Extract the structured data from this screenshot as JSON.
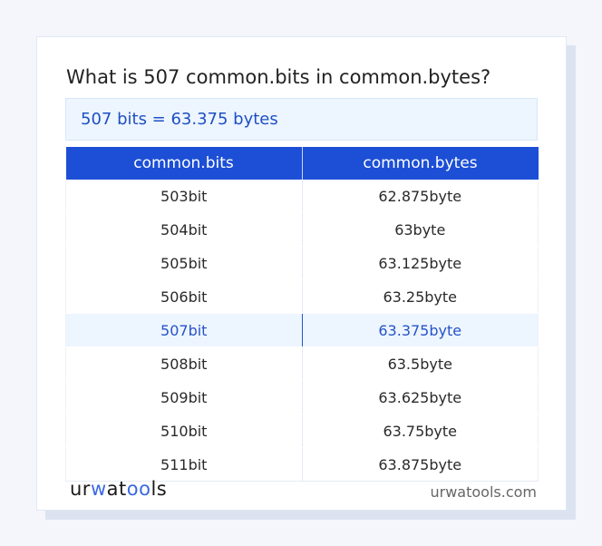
{
  "question": "What is 507 common.bits in common.bytes?",
  "result": "507 bits = 63.375 bytes",
  "table": {
    "headers": [
      "common.bits",
      "common.bytes"
    ],
    "rows": [
      [
        "503bit",
        "62.875byte"
      ],
      [
        "504bit",
        "63byte"
      ],
      [
        "505bit",
        "63.125byte"
      ],
      [
        "506bit",
        "63.25byte"
      ],
      [
        "507bit",
        "63.375byte"
      ],
      [
        "508bit",
        "63.5byte"
      ],
      [
        "509bit",
        "63.625byte"
      ],
      [
        "510bit",
        "63.75byte"
      ],
      [
        "511bit",
        "63.875byte"
      ]
    ],
    "highlighted_row": 4
  },
  "footer": {
    "logo": "urwatools",
    "site": "urwatools.com"
  },
  "colors": {
    "accent": "#1c4fd6",
    "highlight_bg": "#edf5ff",
    "highlight_text": "#2653c9"
  }
}
